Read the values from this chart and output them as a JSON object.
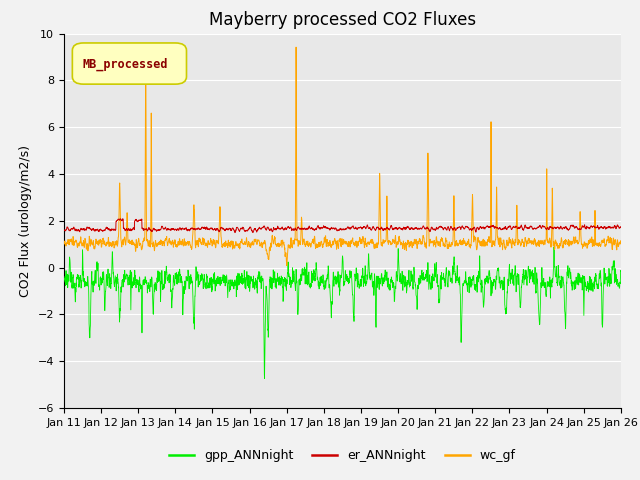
{
  "title": "Mayberry processed CO2 Fluxes",
  "ylabel": "CO2 Flux (urology/m2/s)",
  "ylim": [
    -6,
    10
  ],
  "yticks": [
    -6,
    -4,
    -2,
    0,
    2,
    4,
    6,
    8,
    10
  ],
  "xlim": [
    0,
    15
  ],
  "xtick_labels": [
    "Jan 11",
    "Jan 12",
    "Jan 13",
    "Jan 14",
    "Jan 15",
    "Jan 16",
    "Jan 17",
    "Jan 18",
    "Jan 19",
    "Jan 20",
    "Jan 21",
    "Jan 22",
    "Jan 23",
    "Jan 24",
    "Jan 25",
    "Jan 26"
  ],
  "n_points": 3000,
  "legend_label": "MB_processed",
  "legend_text_color": "#8B0000",
  "legend_box_facecolor": "#FFFFC0",
  "legend_box_edgecolor": "#CCCC00",
  "gpp_color": "#00EE00",
  "er_color": "#CC0000",
  "wc_color": "#FFA500",
  "gpp_label": "gpp_ANNnight",
  "er_label": "er_ANNnight",
  "wc_label": "wc_gf",
  "bg_color": "#E8E8E8",
  "grid_color": "#FFFFFF",
  "fig_bg": "#F2F2F2",
  "title_fontsize": 12,
  "axis_fontsize": 9,
  "tick_fontsize": 8,
  "legend_fontsize": 9
}
